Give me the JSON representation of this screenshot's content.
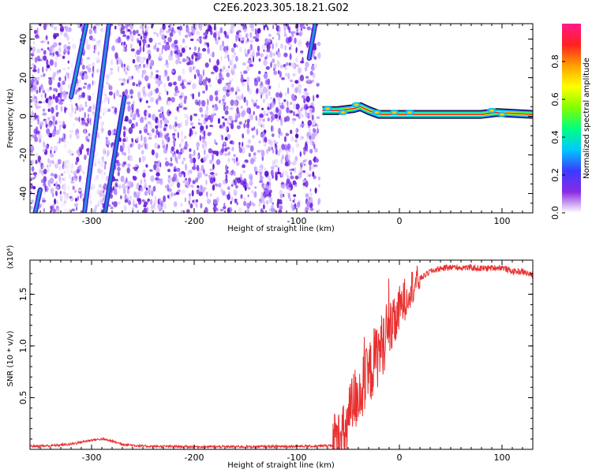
{
  "title": "C2E6.2023.305.18.21.G02",
  "chart_data": [
    {
      "type": "heatmap",
      "xlabel": "Height of straight line (km)",
      "ylabel": "Frequency (Hz)",
      "xlim": [
        -360,
        130
      ],
      "ylim": [
        -50,
        48
      ],
      "x_ticks": [
        -300,
        -200,
        -100,
        0,
        100
      ],
      "x_tick_labels": [
        "-300",
        "-200",
        "-100",
        "0",
        "100"
      ],
      "y_ticks": [
        -40,
        -20,
        0,
        20,
        40
      ],
      "y_tick_labels": [
        "-40",
        "-20",
        "0",
        "20",
        "40"
      ],
      "noise_region_x": [
        -360,
        -78
      ],
      "gap_region_x": [
        -78,
        130
      ],
      "signal_line": [
        {
          "x": -75,
          "y": 3
        },
        {
          "x": -60,
          "y": 3
        },
        {
          "x": -45,
          "y": 4
        },
        {
          "x": -38,
          "y": 5
        },
        {
          "x": -30,
          "y": 3
        },
        {
          "x": -20,
          "y": 1
        },
        {
          "x": 0,
          "y": 1
        },
        {
          "x": 40,
          "y": 1
        },
        {
          "x": 80,
          "y": 1
        },
        {
          "x": 95,
          "y": 2
        },
        {
          "x": 130,
          "y": 1
        }
      ],
      "diagonal_streaks": [
        {
          "x0": -320,
          "y0": 10,
          "x1": -305,
          "y1": 48,
          "color": "#1a9fd8"
        },
        {
          "x0": -307,
          "y0": -50,
          "x1": -283,
          "y1": 48,
          "color": "#2a8fe0"
        },
        {
          "x0": -287,
          "y0": -50,
          "x1": -268,
          "y1": 10,
          "color": "#1e7fd0"
        },
        {
          "x0": -88,
          "y0": 30,
          "x1": -82,
          "y1": 48,
          "color": "#2a8fe0"
        },
        {
          "x0": -355,
          "y0": -50,
          "x1": -350,
          "y1": -38,
          "color": "#2a8fe0"
        }
      ],
      "grid": false
    },
    {
      "type": "line",
      "xlabel": "Height of straight line (km)",
      "ylabel": "SNR (10 * v/v)",
      "y_multiplier": "(x10⁴)",
      "xlim": [
        -360,
        130
      ],
      "ylim": [
        0,
        1.83
      ],
      "x_ticks": [
        -300,
        -200,
        -100,
        0,
        100
      ],
      "x_tick_labels": [
        "-300",
        "-200",
        "-100",
        "0",
        "100"
      ],
      "y_ticks": [
        0.5,
        1.0,
        1.5
      ],
      "y_tick_labels": [
        "0.5",
        "1.0",
        "1.5"
      ],
      "series": [
        {
          "color": "#e83030",
          "x": [
            -360,
            -340,
            -320,
            -310,
            -300,
            -290,
            -280,
            -270,
            -250,
            -200,
            -150,
            -100,
            -80,
            -65,
            -55,
            -50,
            -45,
            -40,
            -35,
            -30,
            -25,
            -20,
            -15,
            -10,
            -5,
            0,
            5,
            10,
            20,
            30,
            40,
            50,
            60,
            80,
            100,
            110,
            120,
            130
          ],
          "values": [
            0.03,
            0.035,
            0.05,
            0.07,
            0.09,
            0.1,
            0.08,
            0.05,
            0.03,
            0.025,
            0.025,
            0.03,
            0.03,
            0.04,
            0.1,
            0.25,
            0.45,
            0.55,
            0.6,
            0.7,
            0.85,
            0.95,
            1.05,
            1.15,
            1.2,
            1.35,
            1.45,
            1.55,
            1.65,
            1.72,
            1.75,
            1.76,
            1.76,
            1.75,
            1.76,
            1.72,
            1.72,
            1.68
          ]
        }
      ],
      "grid": false
    }
  ],
  "colorbar": {
    "label": "Normalized spectral amplitude",
    "ticks": [
      0.0,
      0.2,
      0.4,
      0.6,
      0.8
    ],
    "tick_labels": [
      "0.0",
      "0.2",
      "0.4",
      "0.6",
      "0.8"
    ],
    "range": [
      0,
      1
    ],
    "colors": [
      "#ffffff",
      "#8a2be2",
      "#3b3bff",
      "#00c8ff",
      "#00ff80",
      "#80ff00",
      "#ffff00",
      "#ffa000",
      "#ff2020",
      "#ff1a8c"
    ]
  }
}
